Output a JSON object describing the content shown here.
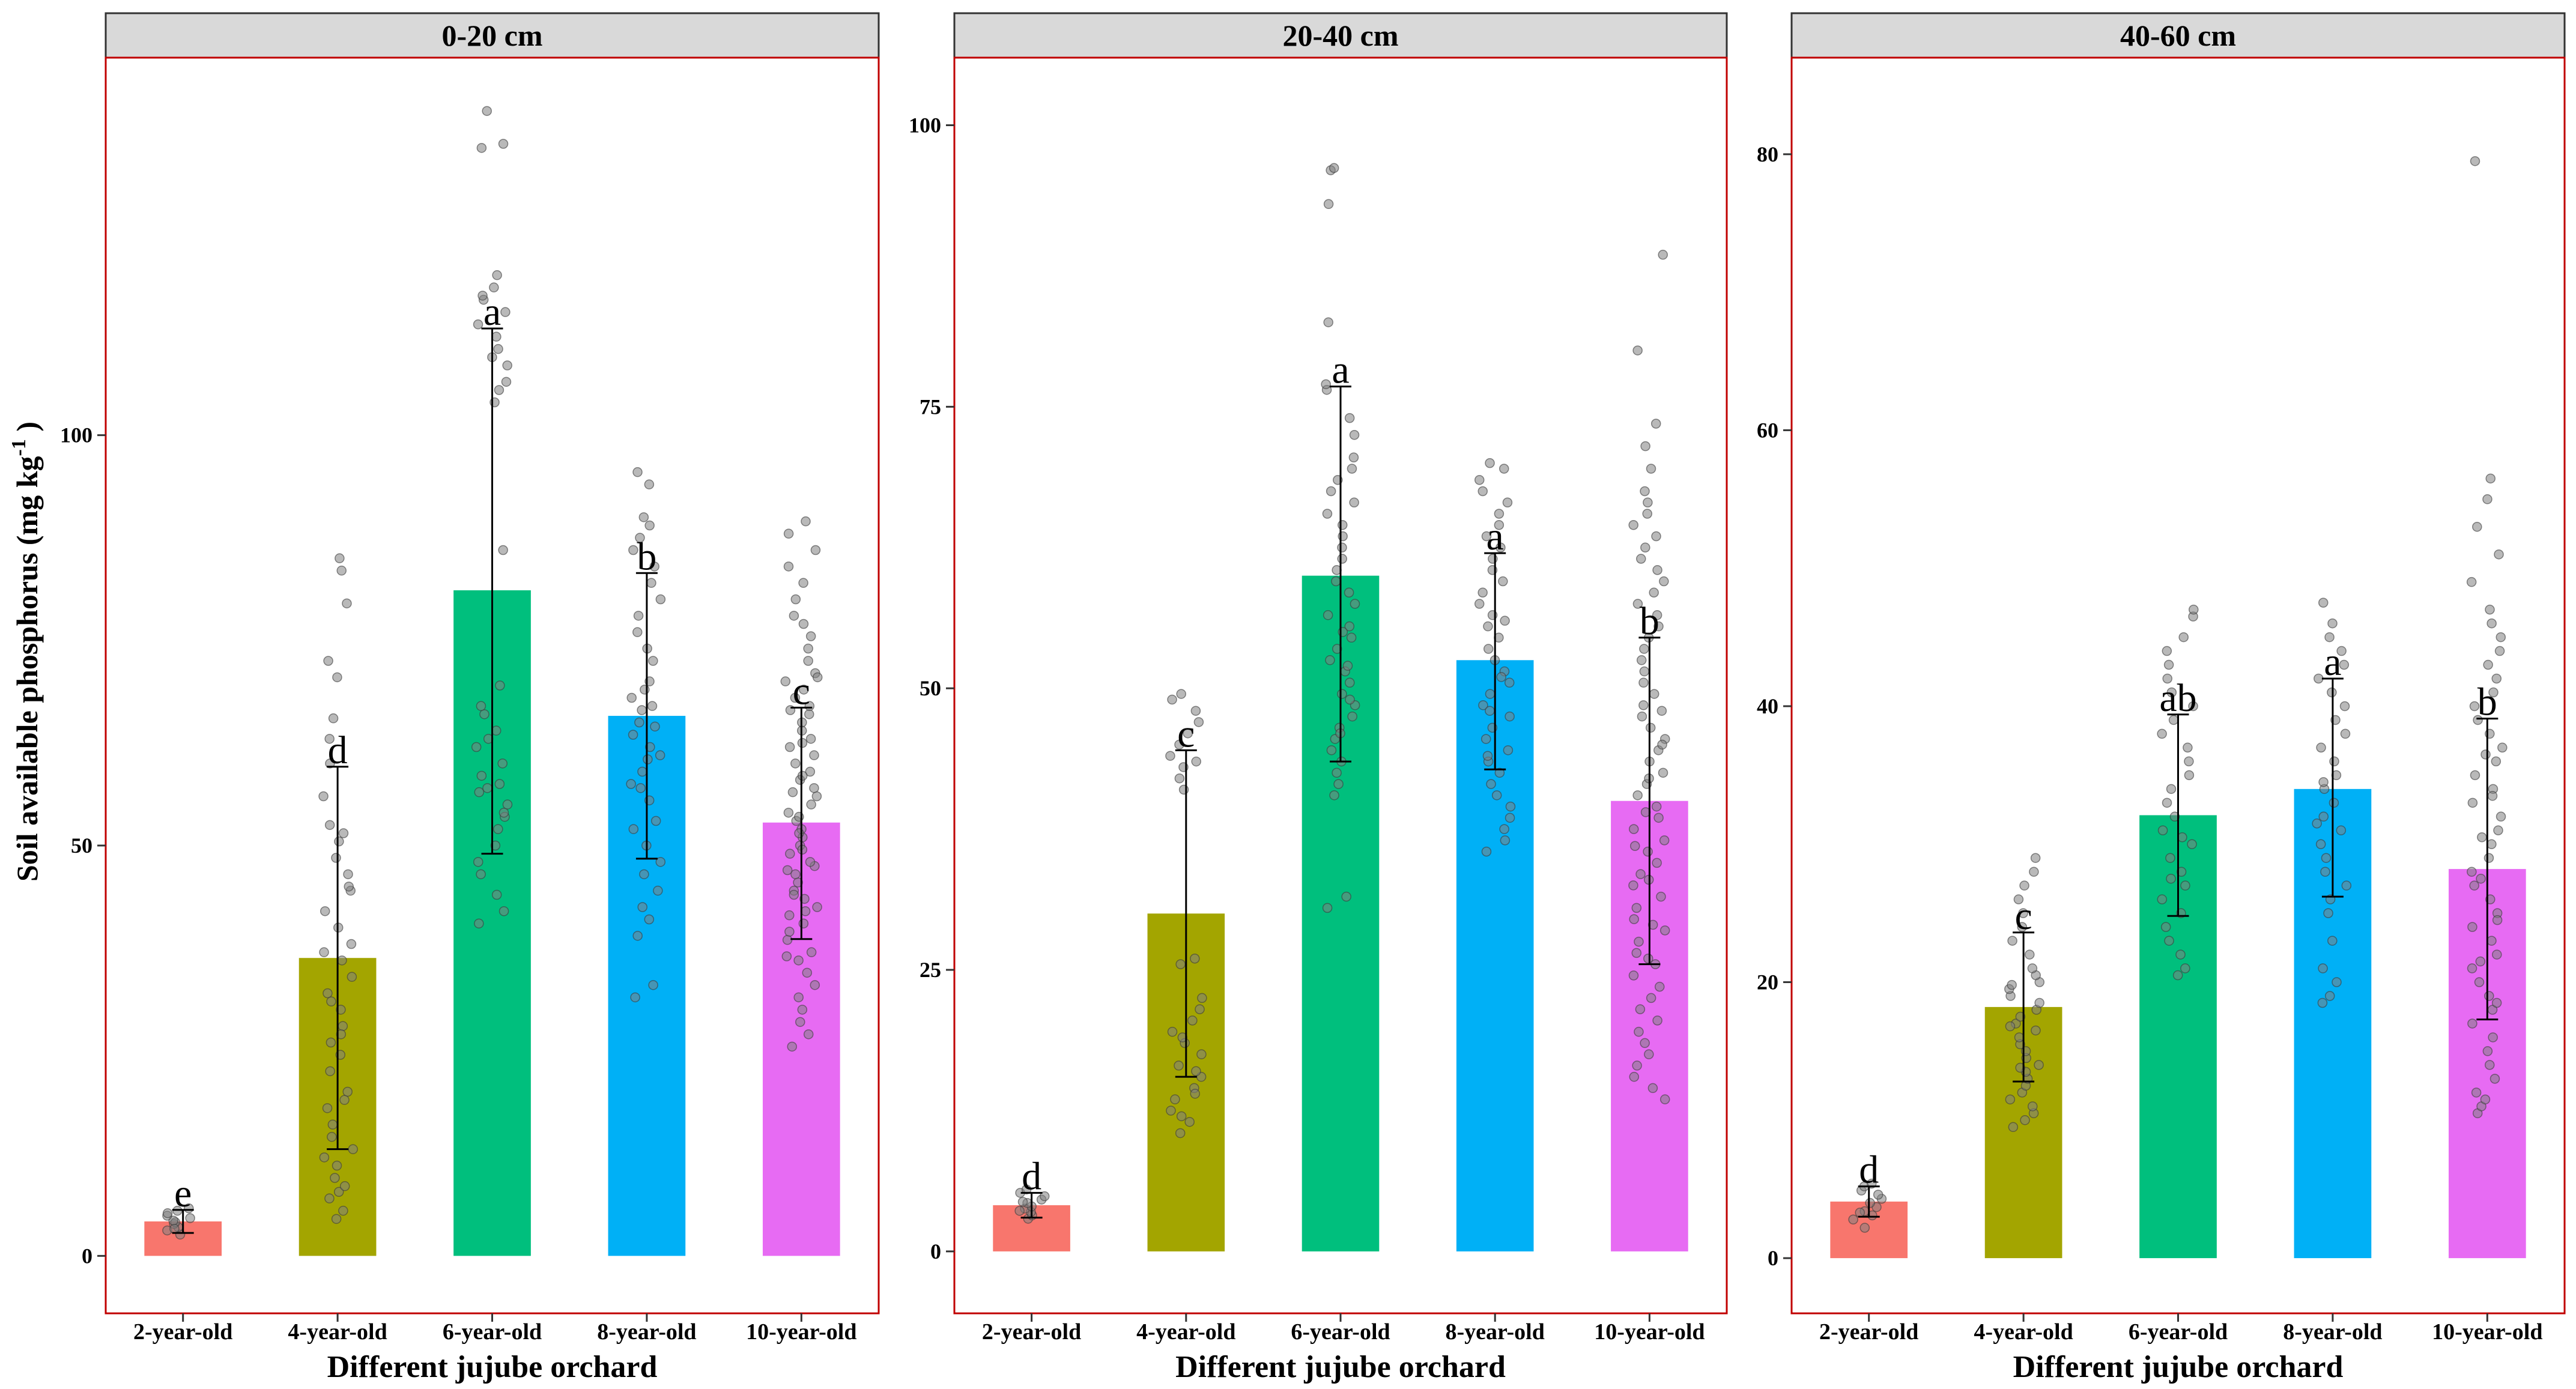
{
  "y_axis_label": "Soil available phosphorus (mg kg",
  "y_axis_label_sup": "-1",
  "y_axis_label_close": " )",
  "colors": {
    "2-year-old": "#F8766D",
    "4-year-old": "#A3A500",
    "6-year-old": "#00BF7D",
    "8-year-old": "#00B0F6",
    "10-year-old": "#E76BF3",
    "strip_fill": "#D9D9D9",
    "panel_border": "#C00000",
    "point_fill": "#808080"
  },
  "chart_data": [
    {
      "type": "bar",
      "title": "0-20 cm",
      "xlabel": "Different jujube orchard",
      "ylabel": "Soil available phosphorus (mg kg-1)",
      "categories": [
        "2-year-old",
        "4-year-old",
        "6-year-old",
        "8-year-old",
        "10-year-old"
      ],
      "values": [
        4.2,
        36.3,
        81.1,
        65.8,
        52.8
      ],
      "error_low": [
        2.8,
        13.0,
        49.0,
        48.4,
        38.6
      ],
      "error_high": [
        5.6,
        59.6,
        113.0,
        83.2,
        66.8
      ],
      "letters": [
        "e",
        "d",
        "a",
        "b",
        "c"
      ],
      "yticks": [
        0,
        50,
        100
      ],
      "ylim": [
        -7,
        146
      ],
      "points": [
        [
          2.6,
          3.1,
          3.5,
          3.9,
          4.1,
          4.3,
          4.6,
          4.9,
          5.2,
          5.5,
          5.8,
          3.3
        ],
        [
          4.5,
          5.5,
          7.0,
          7.8,
          9.5,
          11.0,
          13.0,
          14.5,
          16.0,
          18.0,
          20.0,
          22.5,
          24.5,
          26.0,
          28.0,
          30.0,
          32.0,
          34.0,
          36.0,
          38.0,
          40.0,
          42.0,
          44.5,
          46.5,
          48.5,
          50.5,
          52.5,
          56.0,
          60.0,
          63.0,
          65.5,
          70.5,
          72.5,
          79.5,
          83.5,
          85.0,
          8.5,
          12.0,
          19.0,
          27.0,
          31.0,
          37.0,
          45.0,
          51.5
        ],
        [
          40.5,
          42.0,
          44.0,
          46.5,
          48.0,
          50.0,
          52.0,
          53.5,
          55.0,
          56.5,
          57.5,
          58.5,
          60.0,
          62.0,
          64.0,
          66.0,
          67.0,
          69.5,
          86.0,
          104.0,
          106.5,
          108.5,
          110.5,
          112.0,
          113.5,
          115.0,
          116.5,
          118.0,
          119.5,
          135.0,
          135.5,
          139.5,
          54.0,
          57.0,
          63.0,
          105.5,
          109.5,
          117.0
        ],
        [
          31.5,
          33.0,
          39.0,
          41.0,
          42.5,
          44.5,
          46.5,
          48.0,
          50.0,
          52.0,
          53.0,
          55.5,
          57.5,
          59.0,
          60.5,
          62.0,
          63.5,
          64.5,
          65.0,
          66.5,
          67.0,
          69.0,
          70.0,
          72.5,
          74.0,
          76.0,
          78.0,
          80.0,
          82.0,
          84.0,
          86.0,
          87.5,
          89.0,
          90.0,
          94.0,
          95.5,
          57.0,
          61.0,
          68.0
        ],
        [
          25.5,
          27.0,
          28.5,
          30.0,
          31.5,
          33.0,
          34.5,
          36.0,
          37.0,
          38.5,
          39.5,
          40.5,
          41.5,
          42.5,
          43.5,
          44.5,
          45.5,
          46.5,
          47.5,
          48.0,
          49.0,
          50.0,
          51.0,
          52.0,
          53.0,
          54.0,
          55.0,
          56.0,
          57.0,
          58.0,
          59.0,
          60.0,
          61.0,
          62.0,
          63.0,
          64.0,
          65.0,
          66.0,
          67.0,
          68.0,
          69.0,
          70.0,
          71.0,
          72.5,
          74.0,
          75.5,
          77.0,
          78.0,
          80.0,
          82.0,
          84.0,
          86.0,
          88.0,
          89.5,
          36.5,
          42.0,
          44.0,
          47.0,
          49.5,
          51.5,
          53.5,
          56.5,
          58.5,
          62.5,
          66.5,
          70.5
        ]
      ]
    },
    {
      "type": "bar",
      "title": "20-40 cm",
      "xlabel": "Different jujube orchard",
      "ylabel": "",
      "categories": [
        "2-year-old",
        "4-year-old",
        "6-year-old",
        "8-year-old",
        "10-year-old"
      ],
      "values": [
        4.1,
        30.0,
        60.0,
        52.5,
        40.0
      ],
      "error_low": [
        3.0,
        15.5,
        43.5,
        42.8,
        25.5
      ],
      "error_high": [
        5.2,
        44.5,
        76.8,
        62.0,
        54.5
      ],
      "letters": [
        "d",
        "c",
        "a",
        "a",
        "b"
      ],
      "yticks": [
        0,
        25,
        50,
        75,
        100
      ],
      "ylim": [
        -5.5,
        106
      ],
      "points": [
        [
          2.9,
          3.2,
          3.5,
          3.8,
          4.0,
          4.3,
          4.6,
          4.9,
          5.2,
          5.5,
          3.6,
          4.4
        ],
        [
          10.5,
          11.5,
          12.5,
          13.5,
          14.5,
          15.5,
          16.5,
          17.5,
          18.5,
          19.5,
          20.5,
          21.5,
          22.5,
          25.5,
          26.0,
          41.0,
          42.0,
          43.0,
          43.5,
          44.0,
          45.0,
          46.0,
          47.0,
          48.0,
          49.0,
          49.5,
          12.0,
          14.0,
          16.0,
          19.0
        ],
        [
          30.5,
          31.5,
          40.5,
          41.5,
          42.5,
          43.5,
          44.5,
          45.5,
          46.5,
          47.5,
          48.5,
          49.5,
          50.5,
          51.5,
          52.5,
          53.5,
          54.5,
          55.5,
          56.5,
          57.5,
          58.5,
          59.5,
          60.5,
          61.5,
          62.5,
          63.5,
          64.5,
          65.5,
          66.5,
          67.5,
          68.5,
          69.5,
          70.5,
          72.5,
          74.0,
          76.5,
          77.0,
          82.5,
          93.0,
          96.0,
          96.2,
          46.0,
          49.0,
          52.0,
          55.0
        ],
        [
          35.5,
          36.5,
          37.5,
          38.5,
          39.5,
          40.5,
          41.5,
          42.5,
          43.5,
          44.5,
          45.5,
          46.5,
          47.5,
          48.5,
          49.5,
          50.5,
          51.5,
          52.5,
          53.5,
          54.5,
          55.5,
          56.5,
          57.5,
          58.5,
          59.5,
          60.5,
          61.5,
          62.5,
          63.5,
          64.5,
          65.5,
          66.5,
          67.5,
          68.5,
          69.5,
          70.0,
          44.0,
          48.0,
          51.0,
          56.0
        ],
        [
          13.5,
          14.5,
          15.5,
          16.5,
          17.5,
          18.5,
          19.5,
          20.5,
          21.5,
          22.5,
          23.5,
          24.5,
          25.5,
          26.5,
          27.5,
          28.5,
          29.5,
          30.5,
          31.5,
          32.5,
          33.5,
          34.5,
          35.5,
          36.5,
          37.5,
          38.5,
          39.5,
          40.5,
          41.5,
          42.5,
          43.5,
          44.5,
          45.5,
          46.5,
          47.5,
          48.5,
          49.5,
          50.5,
          51.5,
          52.5,
          53.5,
          54.5,
          55.5,
          56.5,
          57.5,
          58.5,
          59.5,
          60.5,
          61.5,
          62.5,
          63.5,
          64.5,
          65.5,
          66.5,
          67.5,
          69.5,
          71.5,
          73.5,
          80.0,
          88.5,
          26.0,
          29.0,
          33.0,
          36.0,
          39.0,
          42.0,
          45.0,
          48.0
        ]
      ]
    },
    {
      "type": "bar",
      "title": "40-60 cm",
      "xlabel": "Different jujube orchard",
      "ylabel": "",
      "categories": [
        "2-year-old",
        "4-year-old",
        "6-year-old",
        "8-year-old",
        "10-year-old"
      ],
      "values": [
        4.1,
        18.2,
        32.1,
        34.0,
        28.2
      ],
      "error_low": [
        3.0,
        12.8,
        24.8,
        26.2,
        17.3
      ],
      "error_high": [
        5.2,
        23.6,
        39.4,
        42.0,
        39.1
      ],
      "letters": [
        "d",
        "c",
        "ab",
        "a",
        "b"
      ],
      "yticks": [
        0,
        20,
        40,
        60,
        80
      ],
      "ylim": [
        -4,
        87
      ],
      "points": [
        [
          2.2,
          2.8,
          3.1,
          3.4,
          3.7,
          4.0,
          4.3,
          4.6,
          4.9,
          5.2,
          5.4,
          3.3
        ],
        [
          9.5,
          10.0,
          10.5,
          11.0,
          11.5,
          12.0,
          12.5,
          13.0,
          13.5,
          14.0,
          14.5,
          15.0,
          15.5,
          16.0,
          16.5,
          17.0,
          17.5,
          18.0,
          18.5,
          19.0,
          19.5,
          20.0,
          20.5,
          21.0,
          22.0,
          23.0,
          24.0,
          25.0,
          26.0,
          27.0,
          28.0,
          29.0,
          13.8,
          16.8,
          19.8
        ],
        [
          20.5,
          21.0,
          22.0,
          23.0,
          24.0,
          25.0,
          26.0,
          27.0,
          28.0,
          29.0,
          30.0,
          31.0,
          32.0,
          33.0,
          34.0,
          35.0,
          36.0,
          37.0,
          38.0,
          39.0,
          40.0,
          41.0,
          42.0,
          43.0,
          44.0,
          45.0,
          46.5,
          47.0,
          27.5,
          30.5
        ],
        [
          18.5,
          19.0,
          20.0,
          21.0,
          23.0,
          25.0,
          26.0,
          27.0,
          28.0,
          29.0,
          30.0,
          31.0,
          32.0,
          33.0,
          34.0,
          35.0,
          36.0,
          37.0,
          38.0,
          39.0,
          40.0,
          41.0,
          42.0,
          43.0,
          44.0,
          45.0,
          46.0,
          47.5,
          31.5,
          34.5
        ],
        [
          10.5,
          11.0,
          11.5,
          12.0,
          13.0,
          14.0,
          15.0,
          16.0,
          17.0,
          18.0,
          19.0,
          20.0,
          21.0,
          22.0,
          23.0,
          24.0,
          25.0,
          26.0,
          27.0,
          28.0,
          29.0,
          30.0,
          31.0,
          32.0,
          33.0,
          34.0,
          35.0,
          36.0,
          37.0,
          38.0,
          39.0,
          40.0,
          41.0,
          42.0,
          43.0,
          44.0,
          45.0,
          46.0,
          47.0,
          49.0,
          51.0,
          53.0,
          55.0,
          56.5,
          79.5,
          18.5,
          21.5,
          24.5,
          27.5,
          30.5,
          33.5,
          36.5
        ]
      ]
    }
  ]
}
